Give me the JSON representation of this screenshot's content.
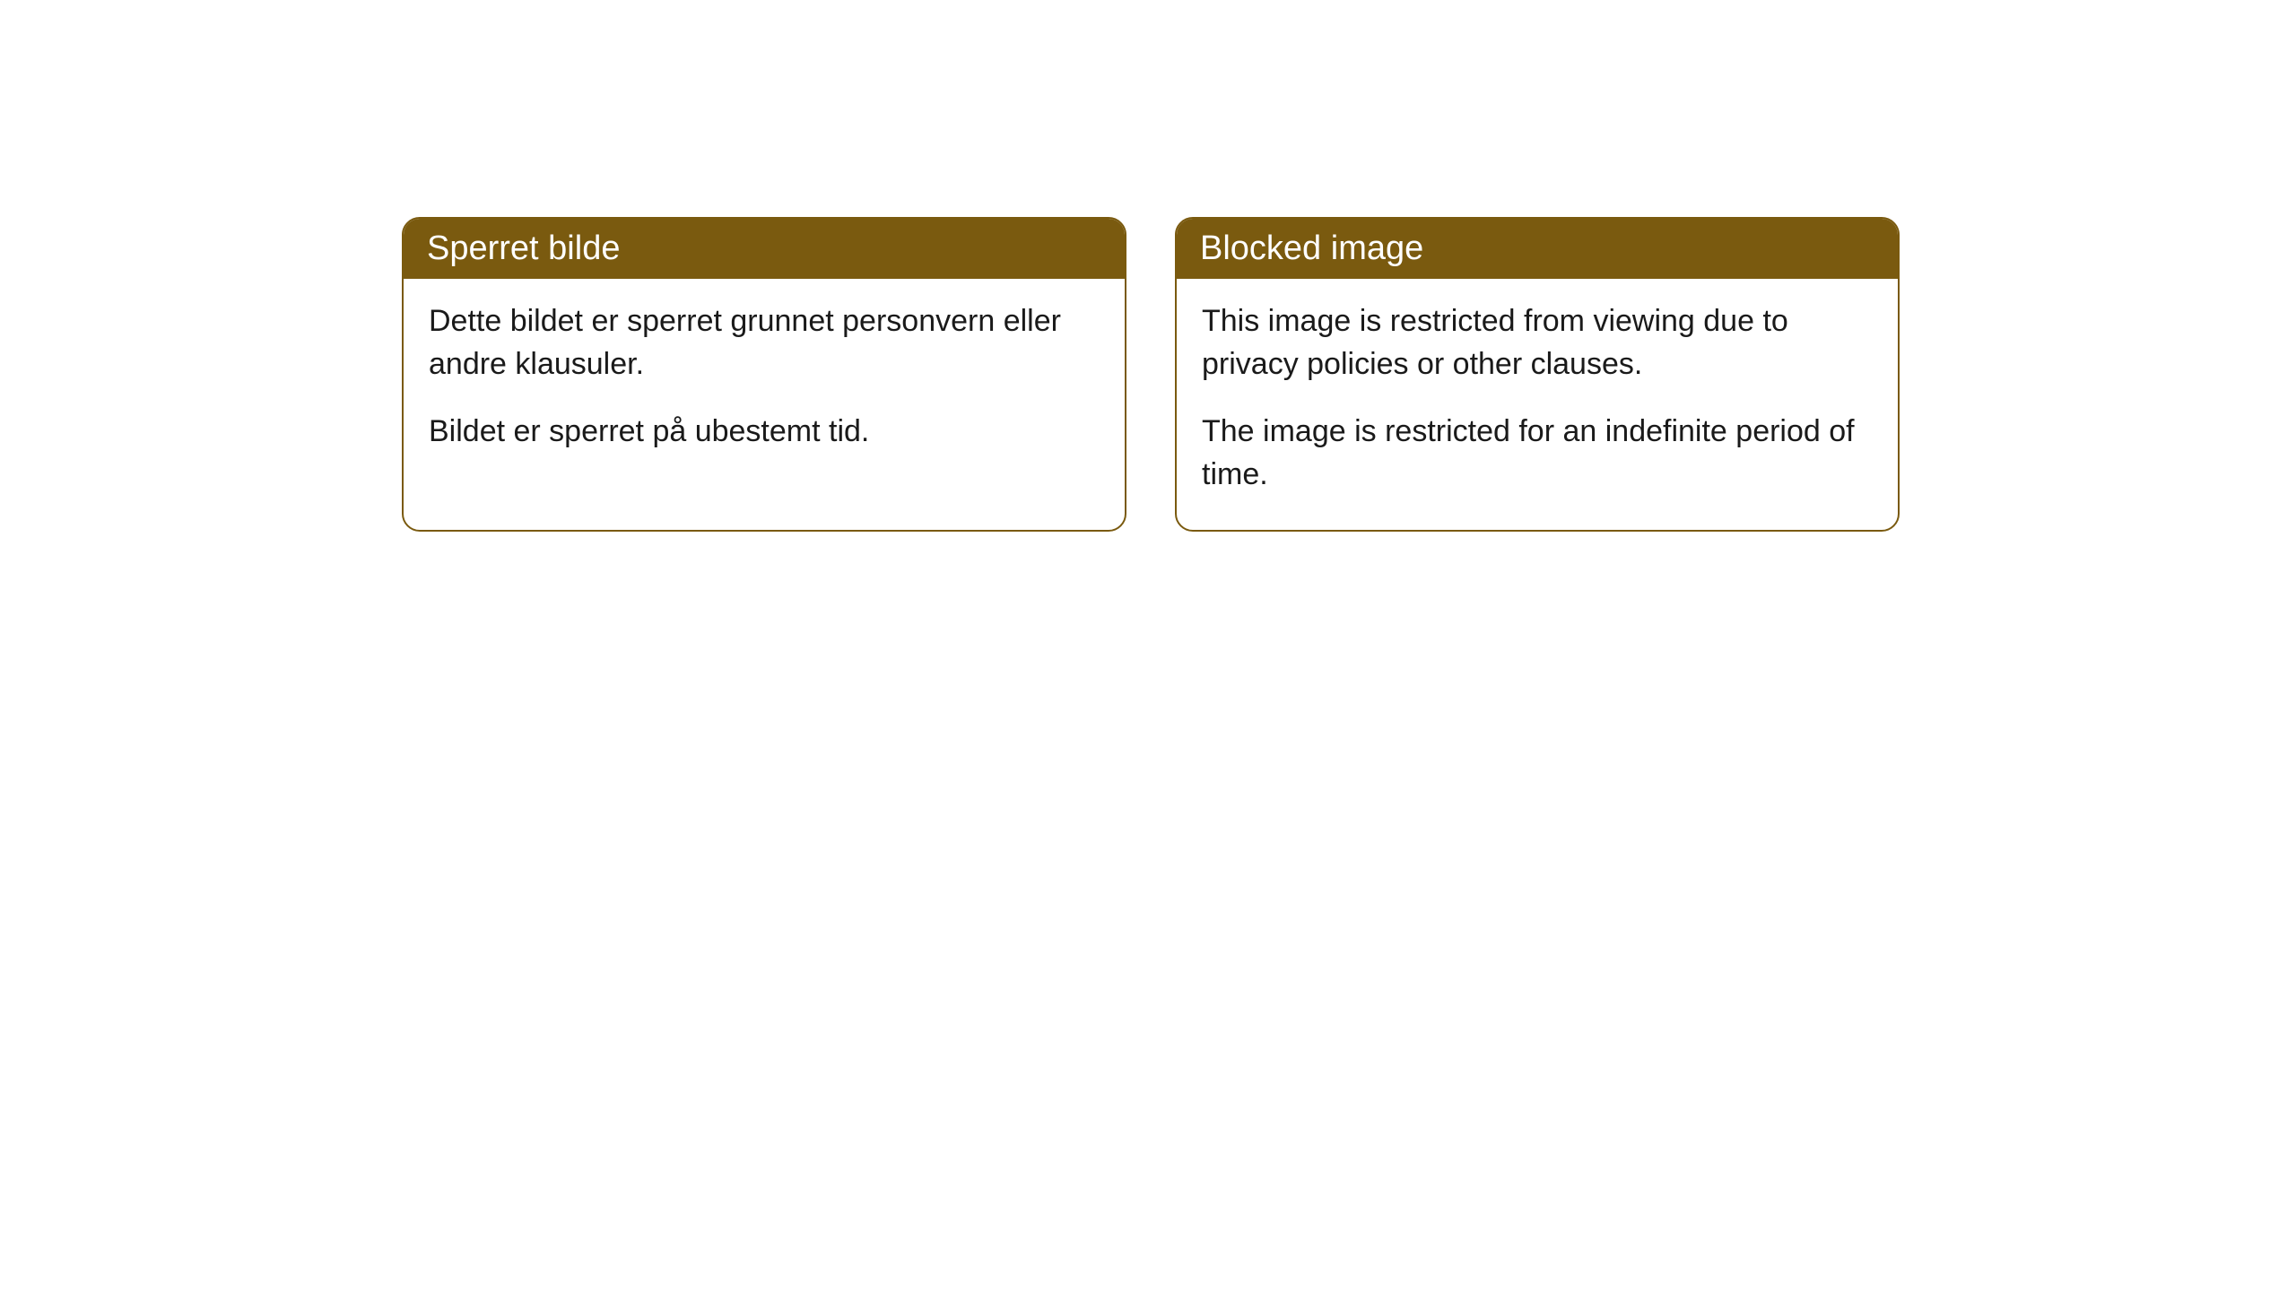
{
  "cards": [
    {
      "title": "Sperret bilde",
      "paragraph1": "Dette bildet er sperret grunnet personvern eller andre klausuler.",
      "paragraph2": "Bildet er sperret på ubestemt tid."
    },
    {
      "title": "Blocked image",
      "paragraph1": "This image is restricted from viewing due to privacy policies or other clauses.",
      "paragraph2": "The image is restricted for an indefinite period of time."
    }
  ],
  "styling": {
    "header_background_color": "#7a5a0f",
    "header_text_color": "#ffffff",
    "border_color": "#7a5a0f",
    "body_text_color": "#1a1a1a",
    "card_background_color": "#ffffff",
    "page_background_color": "#ffffff",
    "border_radius": 20,
    "header_font_size": 38,
    "body_font_size": 34
  }
}
